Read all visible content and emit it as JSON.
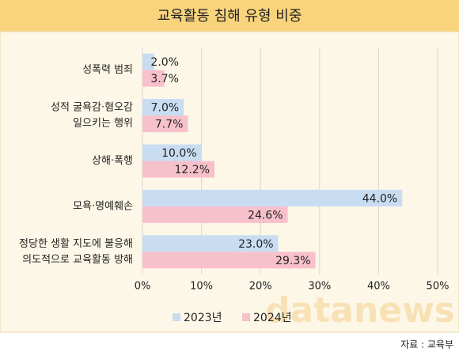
{
  "chart_data": {
    "type": "bar",
    "orientation": "horizontal",
    "title": "교육활동 침해 유형 비중",
    "categories": [
      [
        "성폭력 범죄"
      ],
      [
        "성적 굴욕감·혐오감",
        "일으키는 행위"
      ],
      [
        "상해·폭행"
      ],
      [
        "모욕·명예훼손"
      ],
      [
        "정당한 생활 지도에 불응해",
        "의도적으로 교육활동 방해"
      ]
    ],
    "series": [
      {
        "name": "2023년",
        "color": "#c9ddf2",
        "values": [
          2.0,
          7.0,
          10.0,
          44.0,
          23.0
        ],
        "value_labels": [
          "2.0%",
          "7.0%",
          "10.0%",
          "44.0%",
          "23.0%"
        ]
      },
      {
        "name": "2024년",
        "color": "#f7c1cc",
        "values": [
          3.7,
          7.7,
          12.2,
          24.6,
          29.3
        ],
        "value_labels": [
          "3.7%",
          "7.7%",
          "12.2%",
          "24.6%",
          "29.3%"
        ]
      }
    ],
    "xlim": [
      0,
      50
    ],
    "xticks": [
      {
        "value": 0,
        "label": "0%"
      },
      {
        "value": 10,
        "label": "10%"
      },
      {
        "value": 20,
        "label": "20%"
      },
      {
        "value": 30,
        "label": "30%"
      },
      {
        "value": 40,
        "label": "40%"
      },
      {
        "value": 50,
        "label": "50%"
      }
    ],
    "grid": true,
    "legend": "bottom",
    "watermark": "datanews",
    "source": "자료 : 교육부"
  }
}
